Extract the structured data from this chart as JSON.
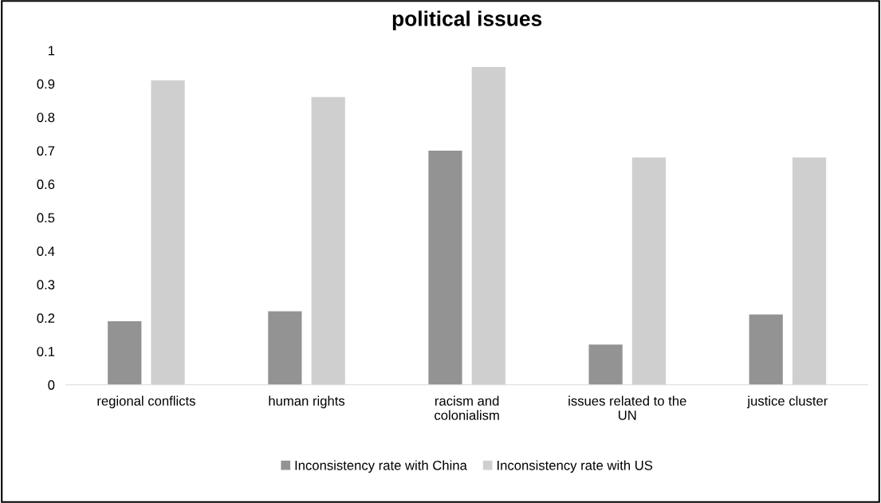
{
  "chart_data": {
    "type": "bar",
    "title": "political issues",
    "categories": [
      "regional conflicts",
      "human rights",
      "racism and\ncolonialism",
      "issues related to the\nUN",
      "justice cluster"
    ],
    "series": [
      {
        "name": "Inconsistency rate with China",
        "color": "#939393",
        "values": [
          0.19,
          0.22,
          0.7,
          0.12,
          0.21
        ]
      },
      {
        "name": "Inconsistency rate with US",
        "color": "#d0cfd0",
        "values": [
          0.91,
          0.86,
          0.95,
          0.68,
          0.68
        ]
      }
    ],
    "ylim": [
      0,
      1
    ],
    "yticks": [
      0,
      0.1,
      0.2,
      0.3,
      0.4,
      0.5,
      0.6,
      0.7,
      0.8,
      0.9,
      1
    ],
    "grid": false,
    "legend": "bottom"
  }
}
